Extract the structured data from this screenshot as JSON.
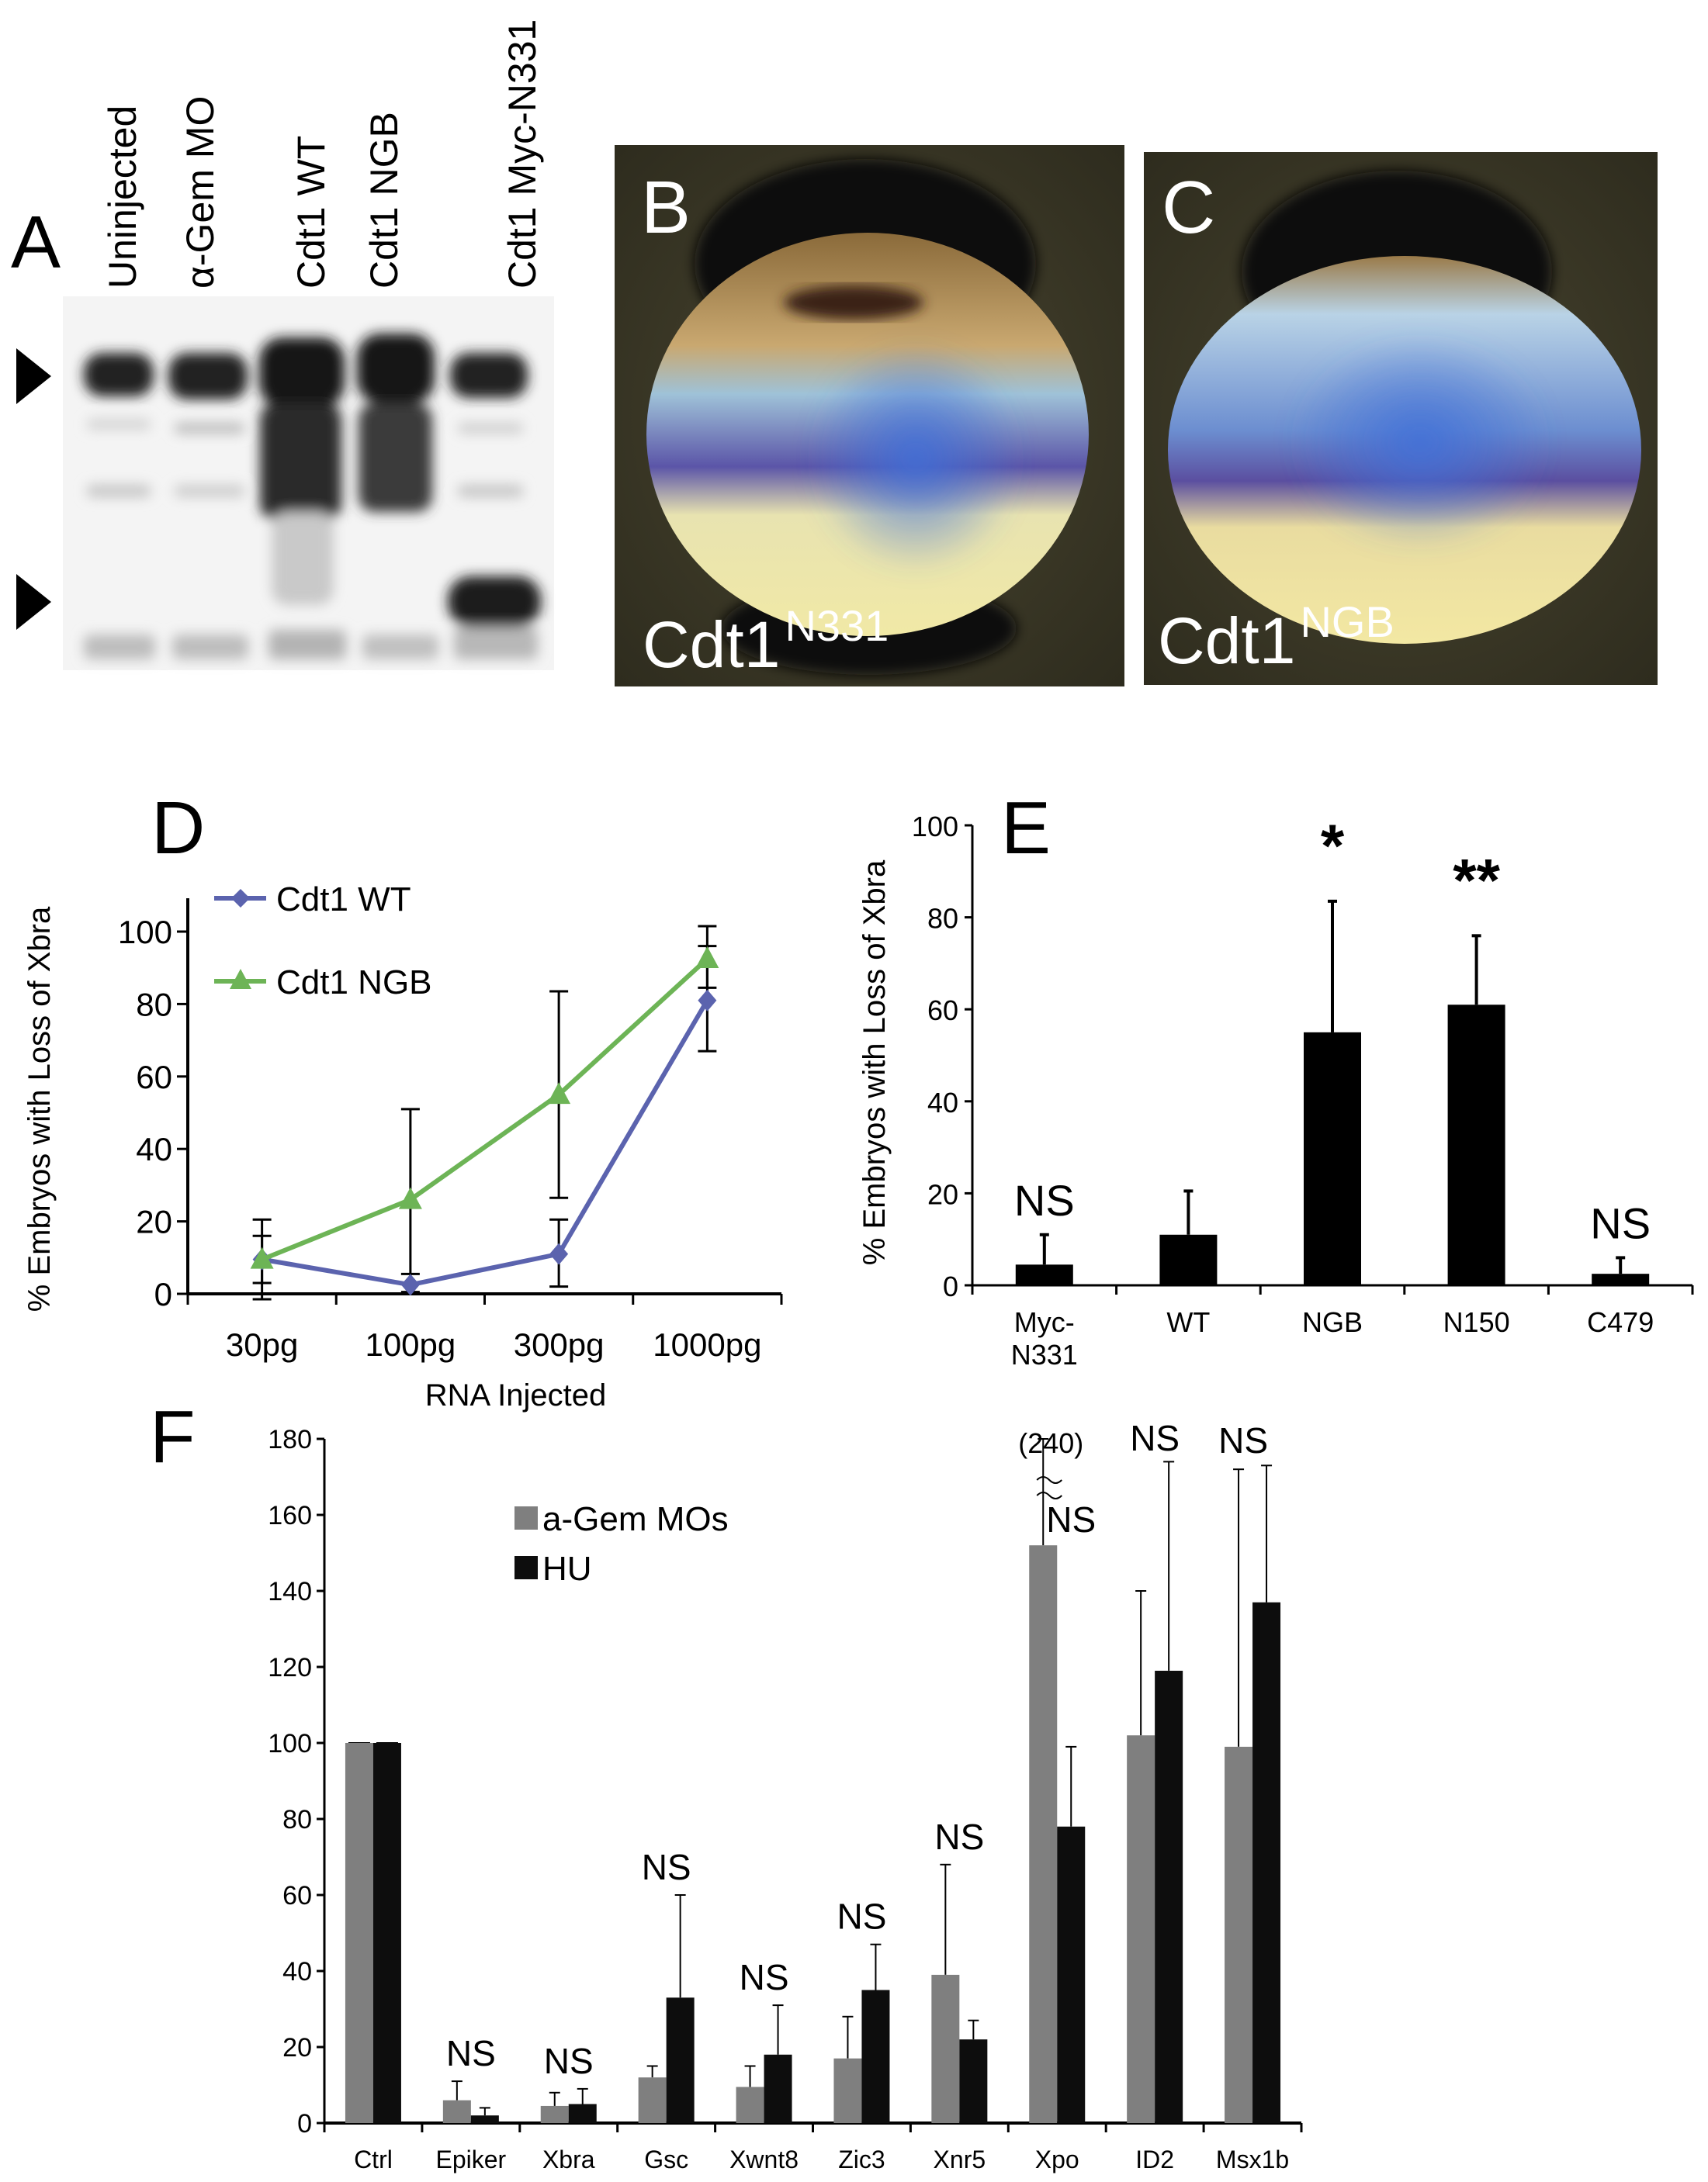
{
  "panels": {
    "A": {
      "letter": "A",
      "lanes": [
        "Uninjected",
        "α-Gem MO",
        "Cdt1 WT",
        "Cdt1 NGB",
        "Cdt1 Myc-N331"
      ],
      "arrows": [
        "upper-band-arrow",
        "lower-band-arrow"
      ]
    },
    "B": {
      "letter": "B",
      "label_main": "Cdt1",
      "label_sup": "N331"
    },
    "C": {
      "letter": "C",
      "label_main": "Cdt1",
      "label_sup": "NGB"
    },
    "D": {
      "letter": "D"
    },
    "E": {
      "letter": "E"
    },
    "F": {
      "letter": "F"
    }
  },
  "colors": {
    "wt": "#5b63ae",
    "ngb": "#6db456",
    "agem": "#7f7f7f",
    "hu": "#0d0d0d",
    "bar": "#000000"
  },
  "chart_data": [
    {
      "id": "D",
      "type": "line",
      "title": "",
      "xlabel": "RNA Injected",
      "ylabel": "% Embryos with Loss of Xbra",
      "categories": [
        "30pg",
        "100pg",
        "300pg",
        "1000pg"
      ],
      "ylim": [
        0,
        100
      ],
      "yticks": [
        0,
        20,
        40,
        60,
        80,
        100
      ],
      "legend": "top-left",
      "grid": false,
      "series": [
        {
          "name": "Cdt1 WT",
          "marker": "diamond",
          "values": [
            9.5,
            2.5,
            11,
            81
          ],
          "err_low": [
            3,
            0,
            2,
            67
          ],
          "err_high": [
            16,
            5.5,
            20.5,
            96
          ]
        },
        {
          "name": "Cdt1 NGB",
          "marker": "triangle",
          "values": [
            9.5,
            26,
            55,
            92.5
          ],
          "err_low": [
            -1.5,
            0.5,
            26.5,
            84.5
          ],
          "err_high": [
            20.5,
            51,
            83.5,
            101.5
          ]
        }
      ]
    },
    {
      "id": "E",
      "type": "bar",
      "title": "",
      "xlabel": "",
      "ylabel": "% Embryos with Loss of Xbra",
      "categories": [
        "Myc-\nN331",
        "WT",
        "NGB",
        "N150",
        "C479"
      ],
      "category_lines": [
        [
          "Myc-",
          "N331"
        ],
        [
          "WT"
        ],
        [
          "NGB"
        ],
        [
          "N150"
        ],
        [
          "C479"
        ]
      ],
      "ylim": [
        0,
        100
      ],
      "yticks": [
        0,
        20,
        40,
        60,
        80,
        100
      ],
      "grid": false,
      "values": [
        4.5,
        11,
        55,
        61,
        2.5
      ],
      "err_high": [
        11,
        20.5,
        83.5,
        76,
        6
      ],
      "annotations": [
        "NS",
        "",
        "*",
        "**",
        "NS"
      ]
    },
    {
      "id": "F",
      "type": "bar",
      "title": "",
      "xlabel": "",
      "ylabel": "",
      "categories": [
        "Ctrl",
        "Epiker",
        "Xbra",
        "Gsc",
        "Xwnt8",
        "Zic3",
        "Xnr5",
        "Xpo",
        "ID2",
        "Msx1b"
      ],
      "ylim": [
        0,
        180
      ],
      "yticks": [
        0,
        20,
        40,
        60,
        80,
        100,
        120,
        140,
        160,
        180
      ],
      "legend": "top-left",
      "grid": false,
      "series": [
        {
          "name": "a-Gem MOs",
          "values": [
            100,
            6,
            4.5,
            12,
            9.5,
            17,
            39,
            152,
            102,
            99
          ],
          "err_high": [
            100,
            11,
            8,
            15,
            15,
            28,
            68,
            240,
            140,
            172
          ]
        },
        {
          "name": "HU",
          "values": [
            100,
            2,
            5,
            33,
            18,
            35,
            22,
            78,
            119,
            137
          ],
          "err_high": [
            100,
            4,
            9,
            60,
            31,
            47,
            27,
            99,
            174,
            173
          ]
        }
      ],
      "annotations": [
        "",
        "NS",
        "NS",
        "NS",
        "NS",
        "NS",
        "NS",
        "NS",
        "NS",
        "NS"
      ],
      "break_note": "(240)"
    }
  ]
}
